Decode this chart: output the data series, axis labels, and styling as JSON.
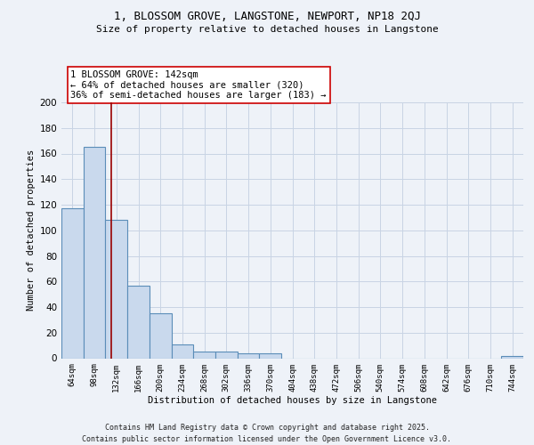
{
  "title_line1": "1, BLOSSOM GROVE, LANGSTONE, NEWPORT, NP18 2QJ",
  "title_line2": "Size of property relative to detached houses in Langstone",
  "xlabel": "Distribution of detached houses by size in Langstone",
  "ylabel": "Number of detached properties",
  "categories": [
    "64sqm",
    "98sqm",
    "132sqm",
    "166sqm",
    "200sqm",
    "234sqm",
    "268sqm",
    "302sqm",
    "336sqm",
    "370sqm",
    "404sqm",
    "438sqm",
    "472sqm",
    "506sqm",
    "540sqm",
    "574sqm",
    "608sqm",
    "642sqm",
    "676sqm",
    "710sqm",
    "744sqm"
  ],
  "values": [
    117,
    165,
    108,
    57,
    35,
    11,
    5,
    5,
    4,
    4,
    0,
    0,
    0,
    0,
    0,
    0,
    0,
    0,
    0,
    0,
    2
  ],
  "bar_color": "#c9d9ed",
  "bar_edge_color": "#5b8db8",
  "grid_color": "#c8d4e4",
  "vline_x": 1.78,
  "vline_color": "#990000",
  "annotation_text": "1 BLOSSOM GROVE: 142sqm\n← 64% of detached houses are smaller (320)\n36% of semi-detached houses are larger (183) →",
  "annotation_box_facecolor": "#ffffff",
  "annotation_box_edge": "#cc0000",
  "ylim": [
    0,
    200
  ],
  "yticks": [
    0,
    20,
    40,
    60,
    80,
    100,
    120,
    140,
    160,
    180,
    200
  ],
  "footer_line1": "Contains HM Land Registry data © Crown copyright and database right 2025.",
  "footer_line2": "Contains public sector information licensed under the Open Government Licence v3.0.",
  "bg_color": "#eef2f8"
}
